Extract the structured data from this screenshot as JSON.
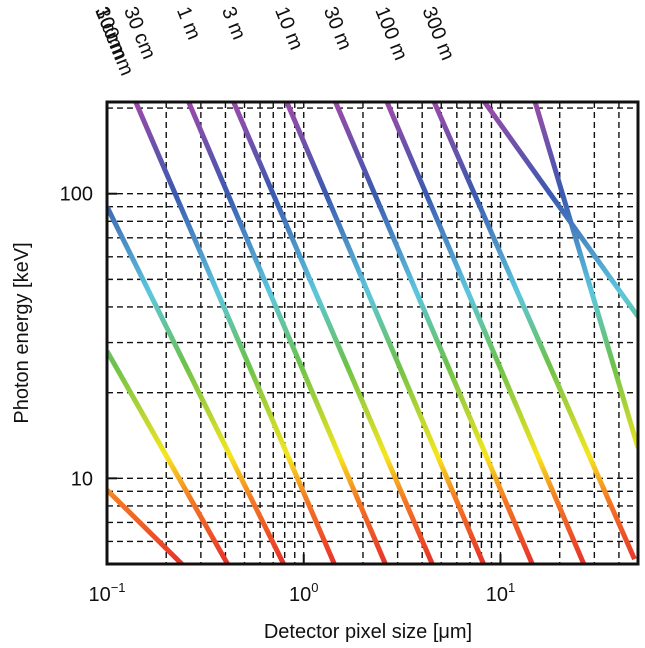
{
  "chart_data": {
    "type": "line",
    "xlabel": "Detector pixel size [μm]",
    "ylabel": "Photon energy [keV]",
    "x_scale": "log",
    "y_scale": "log",
    "xlim": [
      0.1,
      50
    ],
    "ylim": [
      5,
      210
    ],
    "x_ticks": [
      {
        "value": 0.1,
        "mantissa": "10",
        "exponent": "−1"
      },
      {
        "value": 1,
        "mantissa": "10",
        "exponent": "0"
      },
      {
        "value": 10,
        "mantissa": "10",
        "exponent": "1"
      }
    ],
    "y_ticks": [
      {
        "value": 10,
        "label": "10"
      },
      {
        "value": 100,
        "label": "100"
      }
    ],
    "grid": true,
    "color_scale": {
      "colors": [
        "#e8322a",
        "#f47a24",
        "#f5e61e",
        "#6cc24a",
        "#5cc6dc",
        "#3a5ab0",
        "#9b4aa8"
      ],
      "y_stops": [
        5,
        8.5,
        12,
        25,
        45,
        100,
        210
      ]
    },
    "series": [
      {
        "name": "100 mm",
        "points": [
          [
            0.1,
            9.1
          ],
          [
            0.24,
            5
          ]
        ]
      },
      {
        "name": "3 cm",
        "points": [
          [
            0.1,
            28
          ],
          [
            0.41,
            5
          ]
        ]
      },
      {
        "name": "10 cm",
        "points": [
          [
            0.1,
            90
          ],
          [
            0.79,
            5
          ]
        ]
      },
      {
        "name": "30 cm",
        "points": [
          [
            0.14,
            210
          ],
          [
            1.43,
            5
          ]
        ]
      },
      {
        "name": "1 m",
        "points": [
          [
            0.26,
            210
          ],
          [
            2.6,
            5
          ]
        ]
      },
      {
        "name": "3 m",
        "points": [
          [
            0.44,
            210
          ],
          [
            4.5,
            5
          ]
        ]
      },
      {
        "name": "10 m",
        "points": [
          [
            0.82,
            210
          ],
          [
            8.2,
            5
          ]
        ]
      },
      {
        "name": "30 m",
        "points": [
          [
            1.45,
            210
          ],
          [
            14.5,
            5
          ]
        ]
      },
      {
        "name": "100 m",
        "points": [
          [
            2.65,
            210
          ],
          [
            26.5,
            5
          ]
        ]
      },
      {
        "name": "300 m",
        "points": [
          [
            4.6,
            210
          ],
          [
            48,
            5.2
          ]
        ]
      },
      {
        "name": "",
        "points": [
          [
            8.3,
            210
          ],
          [
            50,
            37
          ]
        ]
      },
      {
        "name": "",
        "points": [
          [
            15,
            210
          ],
          [
            50,
            12.8
          ]
        ]
      }
    ],
    "grid_x": [
      0.2,
      0.3,
      0.4,
      0.5,
      0.6,
      0.7,
      0.8,
      0.9,
      1,
      2,
      3,
      4,
      5,
      6,
      7,
      8,
      9,
      10,
      20,
      30,
      40
    ],
    "grid_y": [
      6,
      7,
      8,
      9,
      10,
      20,
      30,
      40,
      50,
      60,
      70,
      80,
      90,
      100,
      200
    ]
  }
}
